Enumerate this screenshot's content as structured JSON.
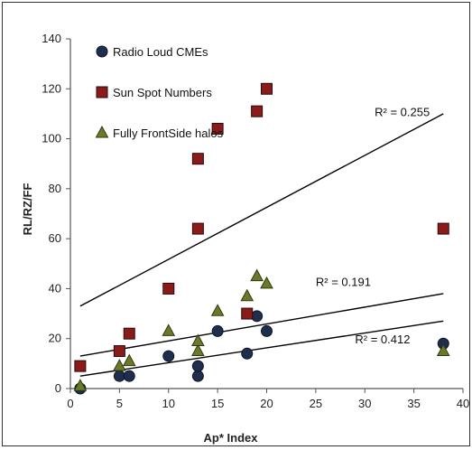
{
  "chart_data": {
    "type": "scatter",
    "xlabel": "Ap* Index",
    "ylabel": "RL/RZ/FF",
    "xlim": [
      0,
      40
    ],
    "ylim": [
      0,
      140
    ],
    "xticks": [
      0,
      5,
      10,
      15,
      20,
      25,
      30,
      35,
      40
    ],
    "yticks": [
      0,
      20,
      40,
      60,
      80,
      100,
      120,
      140
    ],
    "grid": false,
    "legend_position": "top-left",
    "series": [
      {
        "name": "Radio Loud CMEs",
        "marker": "circle",
        "color": "#1f2e4d",
        "points": [
          [
            1,
            0
          ],
          [
            5,
            5
          ],
          [
            6,
            5
          ],
          [
            10,
            13
          ],
          [
            13,
            5
          ],
          [
            13,
            9
          ],
          [
            15,
            23
          ],
          [
            18,
            14
          ],
          [
            19,
            29
          ],
          [
            20,
            23
          ],
          [
            38,
            18
          ]
        ]
      },
      {
        "name": "Sun Spot Numbers",
        "marker": "square",
        "color": "#8b1a1a",
        "points": [
          [
            1,
            9
          ],
          [
            5,
            15
          ],
          [
            6,
            22
          ],
          [
            10,
            40
          ],
          [
            13,
            64
          ],
          [
            13,
            92
          ],
          [
            15,
            104
          ],
          [
            18,
            30
          ],
          [
            19,
            111
          ],
          [
            20,
            120
          ],
          [
            38,
            64
          ]
        ]
      },
      {
        "name": "Fully FrontSide halos",
        "marker": "triangle",
        "color": "#6b7a2a",
        "points": [
          [
            1,
            1
          ],
          [
            5,
            9
          ],
          [
            6,
            11
          ],
          [
            10,
            23
          ],
          [
            13,
            15
          ],
          [
            13,
            19
          ],
          [
            15,
            31
          ],
          [
            18,
            37
          ],
          [
            19,
            45
          ],
          [
            20,
            42
          ],
          [
            38,
            15
          ]
        ]
      }
    ],
    "trendlines": [
      {
        "series": "Sun Spot Numbers",
        "x": [
          1,
          38
        ],
        "y": [
          33,
          110
        ],
        "label": "R² = 0.255",
        "label_at": [
          31,
          109
        ]
      },
      {
        "series": "Fully FrontSide halos",
        "x": [
          1,
          38
        ],
        "y": [
          13,
          38
        ],
        "label": "R² = 0.191",
        "label_at": [
          25,
          41
        ]
      },
      {
        "series": "Radio Loud CMEs",
        "x": [
          1,
          38
        ],
        "y": [
          5,
          27
        ],
        "label": "R² = 0.412",
        "label_at": [
          29,
          18
        ]
      }
    ]
  }
}
